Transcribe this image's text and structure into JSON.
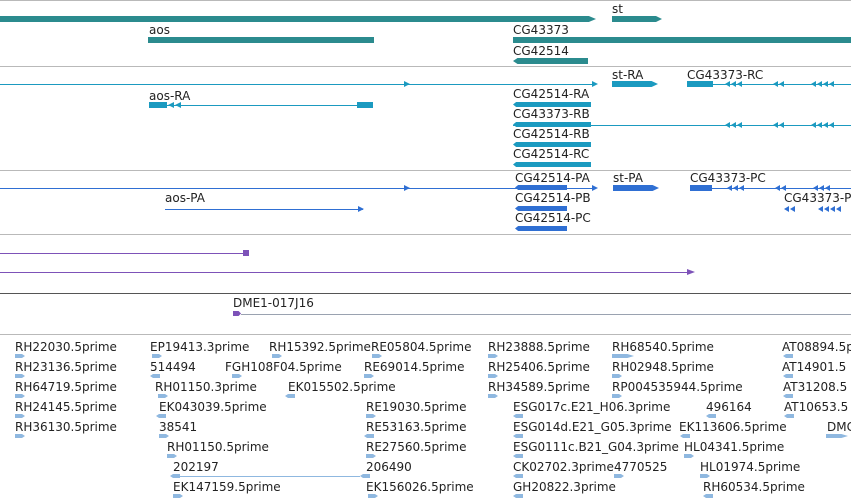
{
  "colors": {
    "gene": "#2b8b8e",
    "mrna": "#1b9ac0",
    "cds": "#2f6fd3",
    "clone": "#7d52b8",
    "est": "#7fb2e0",
    "separator": "#b9b9b9"
  },
  "gene_track": {
    "labels": [
      "st",
      "aos",
      "CG43373",
      "CG42514"
    ]
  },
  "mrna_track": {
    "labels": [
      "aos-RA",
      "st-RA",
      "CG43373-RC",
      "CG42514-RA",
      "CG43373-RB",
      "CG42514-RB",
      "CG42514-RC"
    ]
  },
  "cds_track": {
    "labels": [
      "CG42514-PA",
      "st-PA",
      "CG43373-PC",
      "aos-PA",
      "CG42514-PB",
      "CG43373-P",
      "CG42514-PC"
    ]
  },
  "clone_track": {
    "labels": [
      "DME1-017J16"
    ]
  },
  "est_track": {
    "col1": [
      "RH22030.5prime",
      "RH23136.5prime",
      "RH64719.5prime",
      "RH24145.5prime",
      "RH36130.5prime"
    ],
    "col2": [
      "EP19413.3prime",
      "514494",
      "RH01150.3prime",
      "EK043039.5prime",
      "38541",
      "RH01150.5prime",
      "202197",
      "EK147159.5prime"
    ],
    "col3": [
      "RH15392.5prime",
      "FGH108F04.5prime",
      "EK015502.5prime"
    ],
    "col4": [
      "RE05804.5prime",
      "RE69014.5prime",
      "RE19030.5prime",
      "RE53163.5prime",
      "RE27560.5prime",
      "206490",
      "EK156026.5prime"
    ],
    "col5": [
      "RH23888.5prime",
      "RH25406.5prime",
      "RH34589.5prime",
      "ESG017c.E21_H06.3prime",
      "ESG014d.E21_G05.3prime",
      "ESG0111c.B21_G04.3prime",
      "CK02702.3prime",
      "4770525",
      "GH20822.3prime"
    ],
    "col6": [
      "RH68540.5prime",
      "RH02948.5prime",
      "RP004535944.5prime",
      "496164",
      "EK113606.5prime",
      "HL04341.5prime",
      "HL01974.5prime",
      "RH60534.5prime"
    ],
    "col7": [
      "AT08894.5p",
      "AT14901.5",
      "AT31208.5",
      "AT10653.5",
      "DMG"
    ]
  }
}
